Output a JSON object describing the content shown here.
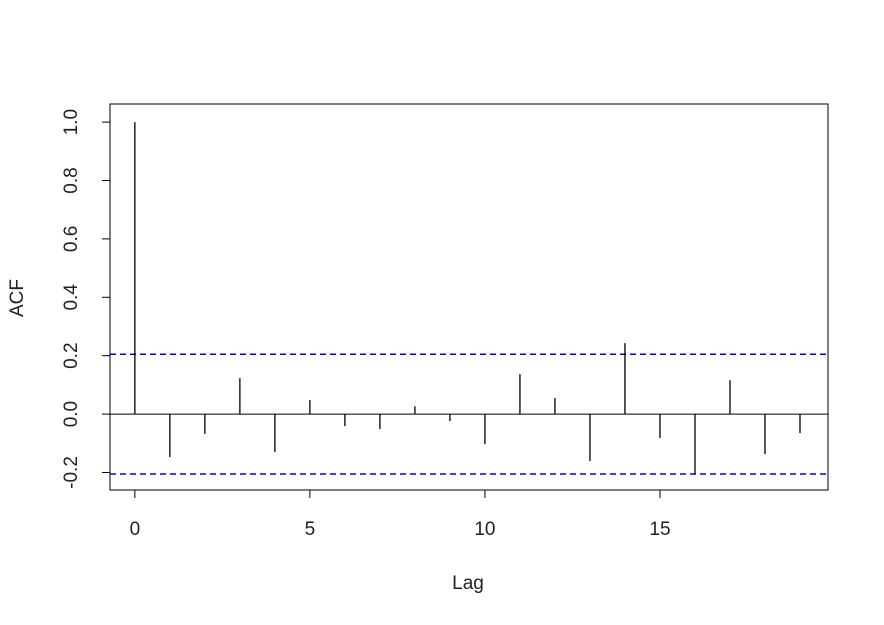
{
  "chart_data": {
    "type": "acf",
    "x_label": "Lag",
    "y_label": "ACF",
    "x": [
      0,
      1,
      2,
      3,
      4,
      5,
      6,
      7,
      8,
      9,
      10,
      11,
      12,
      13,
      14,
      15,
      16,
      17,
      18,
      19
    ],
    "values": [
      1.0,
      -0.147,
      -0.068,
      0.123,
      -0.13,
      0.048,
      -0.041,
      -0.051,
      0.027,
      -0.024,
      -0.103,
      0.137,
      0.055,
      -0.161,
      0.243,
      -0.082,
      -0.205,
      0.116,
      -0.137,
      -0.065
    ],
    "color": "#000000",
    "conf_limits": [
      0.205,
      -0.205
    ],
    "conf_color": "#0000ff",
    "xlim": [
      -0.71,
      19.8
    ],
    "ylim": [
      -0.26,
      1.062
    ],
    "xticks": [
      0,
      5,
      10,
      15
    ],
    "yticks": [
      {
        "value": -0.2,
        "label": "-0.2"
      },
      {
        "value": 0,
        "label": "0.0"
      },
      0.2,
      0.4,
      0.6,
      0.8,
      {
        "value": 1,
        "label": "1.0"
      }
    ]
  }
}
